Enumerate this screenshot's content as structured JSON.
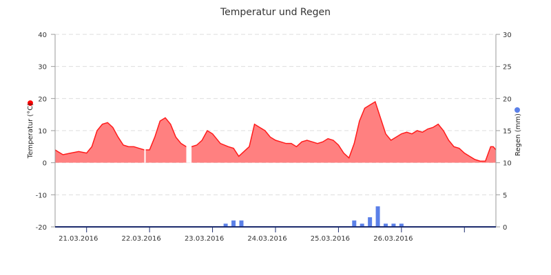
{
  "chart_data": {
    "type": "area",
    "title": "Temperatur und Regen",
    "xlabel": "",
    "x_tick_labels": [
      "21.03.2016",
      "22.03.2016",
      "23.03.2016",
      "24.03.2016",
      "25.03.2016",
      "26.03.2016"
    ],
    "x_range": [
      "2016-03-20 12:00",
      "2016-03-27 12:00"
    ],
    "grid": true,
    "y_left": {
      "label": "Temperatur (°C)",
      "ylim": [
        -20,
        40
      ],
      "ticks": [
        -20,
        -10,
        0,
        10,
        20,
        30,
        40
      ],
      "tick_labels": [
        "-20",
        "-10",
        "0",
        "10",
        "20",
        "30",
        "40"
      ]
    },
    "y_right": {
      "label": "Regen (mm)",
      "ylim": [
        0,
        30
      ],
      "ticks": [
        0,
        5,
        10,
        15,
        20,
        25,
        30
      ],
      "tick_labels": [
        "0",
        "5",
        "10",
        "15",
        "20",
        "25",
        "30"
      ]
    },
    "series": [
      {
        "type": "area",
        "axis": "left",
        "color": "#ff1a1a",
        "fill": "#ff8080",
        "x": [
          "2016-03-20 12:00",
          "2016-03-20 13:00",
          "2016-03-20 15:00",
          "2016-03-20 18:00",
          "2016-03-20 21:00",
          "2016-03-21 00:00",
          "2016-03-21 02:00",
          "2016-03-21 04:00",
          "2016-03-21 06:00",
          "2016-03-21 08:00",
          "2016-03-21 10:00",
          "2016-03-21 12:00",
          "2016-03-21 14:00",
          "2016-03-21 16:00",
          "2016-03-21 18:00",
          "2016-03-21 20:00",
          "2016-03-21 22:00",
          "2016-03-22 00:00",
          "2016-03-22 02:00",
          "2016-03-22 04:00",
          "2016-03-22 06:00",
          "2016-03-22 08:00",
          "2016-03-22 10:00",
          "2016-03-22 12:00",
          "2016-03-22 14:00",
          "2016-03-22 16:00",
          "2016-03-22 18:00",
          "2016-03-22 20:00",
          "2016-03-22 22:00",
          "2016-03-23 00:00",
          "2016-03-23 03:00",
          "2016-03-23 06:00",
          "2016-03-23 08:00",
          "2016-03-23 10:00",
          "2016-03-23 12:00",
          "2016-03-23 14:00",
          "2016-03-23 16:00",
          "2016-03-23 18:00",
          "2016-03-23 20:00",
          "2016-03-23 22:00",
          "2016-03-24 00:00",
          "2016-03-24 02:00",
          "2016-03-24 04:00",
          "2016-03-24 06:00",
          "2016-03-24 08:00",
          "2016-03-24 10:00",
          "2016-03-24 12:00",
          "2016-03-24 14:00",
          "2016-03-24 16:00",
          "2016-03-24 18:00",
          "2016-03-24 20:00",
          "2016-03-24 22:00",
          "2016-03-25 00:00",
          "2016-03-25 02:00",
          "2016-03-25 04:00",
          "2016-03-25 06:00",
          "2016-03-25 08:00",
          "2016-03-25 10:00",
          "2016-03-25 12:00",
          "2016-03-25 14:00",
          "2016-03-25 16:00",
          "2016-03-25 18:00",
          "2016-03-25 20:00",
          "2016-03-25 22:00",
          "2016-03-26 00:00",
          "2016-03-26 02:00",
          "2016-03-26 04:00",
          "2016-03-26 06:00",
          "2016-03-26 08:00",
          "2016-03-26 10:00",
          "2016-03-26 12:00",
          "2016-03-26 14:00",
          "2016-03-26 16:00",
          "2016-03-26 18:00",
          "2016-03-26 20:00",
          "2016-03-26 22:00",
          "2016-03-27 00:00",
          "2016-03-27 02:00",
          "2016-03-27 04:00",
          "2016-03-27 06:00",
          "2016-03-27 08:00",
          "2016-03-27 10:00",
          "2016-03-27 11:00",
          "2016-03-27 12:00"
        ],
        "values": [
          4,
          3.5,
          2.5,
          3,
          3.5,
          3,
          5,
          10,
          12,
          12.5,
          11,
          8,
          5.5,
          5,
          5,
          4.5,
          4,
          4,
          8,
          13,
          14,
          12,
          8,
          6,
          5,
          5,
          5.5,
          7,
          10,
          9,
          6,
          5,
          4.5,
          2,
          3.5,
          5,
          12,
          11,
          10,
          8,
          7,
          6.5,
          6,
          6,
          5,
          6.5,
          7,
          6.5,
          6,
          6.5,
          7.5,
          7,
          5.5,
          3,
          1.5,
          6,
          13,
          17,
          18,
          19,
          14,
          9,
          7,
          8,
          9,
          9.5,
          9,
          10,
          9.5,
          10.5,
          11,
          12,
          10,
          7,
          5,
          4.5,
          3,
          2,
          1,
          0.5,
          0.5,
          5,
          5,
          4
        ],
        "gaps": [
          [
            "2016-03-21 22:00",
            "2016-03-21 22:30"
          ],
          [
            "2016-03-22 14:00",
            "2016-03-22 16:00"
          ]
        ]
      },
      {
        "type": "bar",
        "axis": "right",
        "color": "#5b80e8",
        "x": [
          "2016-03-23 05:00",
          "2016-03-23 08:00",
          "2016-03-23 11:00",
          "2016-03-25 06:00",
          "2016-03-25 09:00",
          "2016-03-25 12:00",
          "2016-03-25 15:00",
          "2016-03-25 18:00",
          "2016-03-25 21:00",
          "2016-03-26 00:00"
        ],
        "values": [
          0.5,
          1,
          1,
          1,
          0.5,
          1.5,
          3.2,
          0.5,
          0.5,
          0.5
        ]
      }
    ],
    "legend": {
      "temperature_marker_color": "#ff0000",
      "rain_marker_color": "#5b80e8"
    }
  }
}
